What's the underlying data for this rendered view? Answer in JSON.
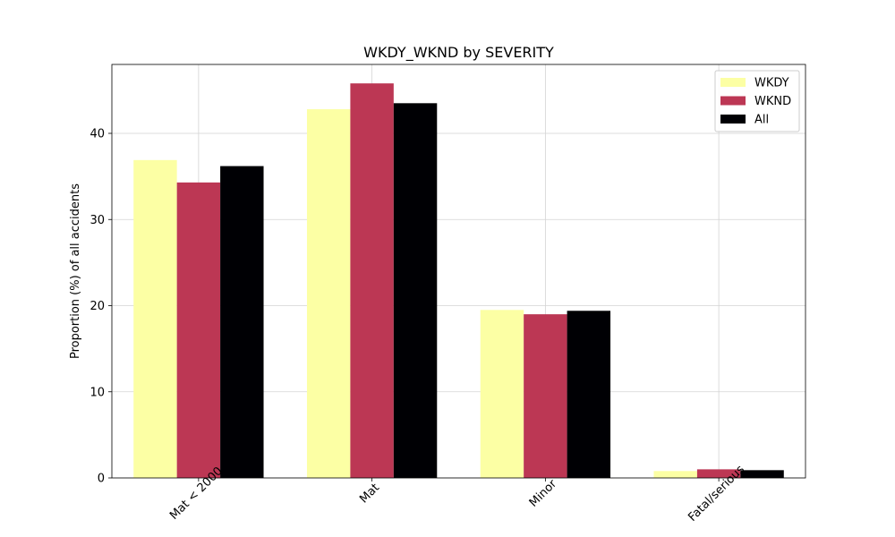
{
  "chart_data": {
    "type": "bar",
    "title": "WKDY_WKND by SEVERITY",
    "xlabel": "",
    "ylabel": "Proportion (%) of all accidents",
    "categories": [
      "Mat < 2000",
      "Mat",
      "Minor",
      "Fatal/serious"
    ],
    "series": [
      {
        "name": "WKDY",
        "color": "#fcffa4",
        "values": [
          36.9,
          42.8,
          19.5,
          0.8
        ]
      },
      {
        "name": "WKND",
        "color": "#bc3754",
        "values": [
          34.3,
          45.8,
          19.0,
          1.0
        ]
      },
      {
        "name": "All",
        "color": "#000004",
        "values": [
          36.2,
          43.5,
          19.4,
          0.9
        ]
      }
    ],
    "ylim": [
      0,
      48
    ],
    "yticks": [
      0,
      10,
      20,
      30,
      40
    ],
    "grid": true,
    "legend_position": "top-right"
  }
}
